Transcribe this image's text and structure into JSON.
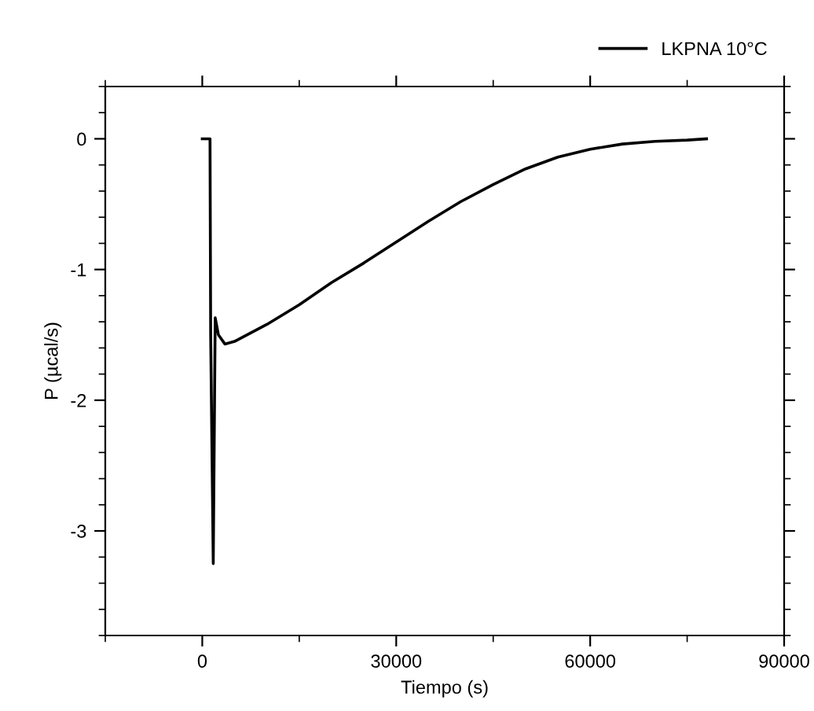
{
  "chart_data": {
    "type": "line",
    "xlabel": "Tiempo (s)",
    "ylabel": "P (µcal/s)",
    "series": [
      {
        "name": "LKPNA 10°C",
        "color": "#000000",
        "x": [
          0,
          1200,
          1300,
          1700,
          2000,
          2500,
          3500,
          5000,
          10000,
          15000,
          20000,
          25000,
          30000,
          35000,
          40000,
          45000,
          50000,
          55000,
          60000,
          65000,
          70000,
          75000,
          78000
        ],
        "values": [
          0,
          0,
          -1.5,
          -3.25,
          -1.37,
          -1.5,
          -1.57,
          -1.55,
          -1.42,
          -1.27,
          -1.1,
          -0.95,
          -0.79,
          -0.63,
          -0.48,
          -0.35,
          -0.23,
          -0.14,
          -0.08,
          -0.04,
          -0.02,
          -0.01,
          0
        ]
      }
    ],
    "xlim": [
      -15000,
      90000
    ],
    "xticks": [
      0,
      30000,
      60000,
      90000
    ],
    "ylim": [
      -3.8,
      0.4
    ],
    "yticks": [
      -3,
      -2,
      -1,
      0
    ],
    "grid": false,
    "legend": "top right",
    "marker": "none",
    "line_style": "solid"
  }
}
